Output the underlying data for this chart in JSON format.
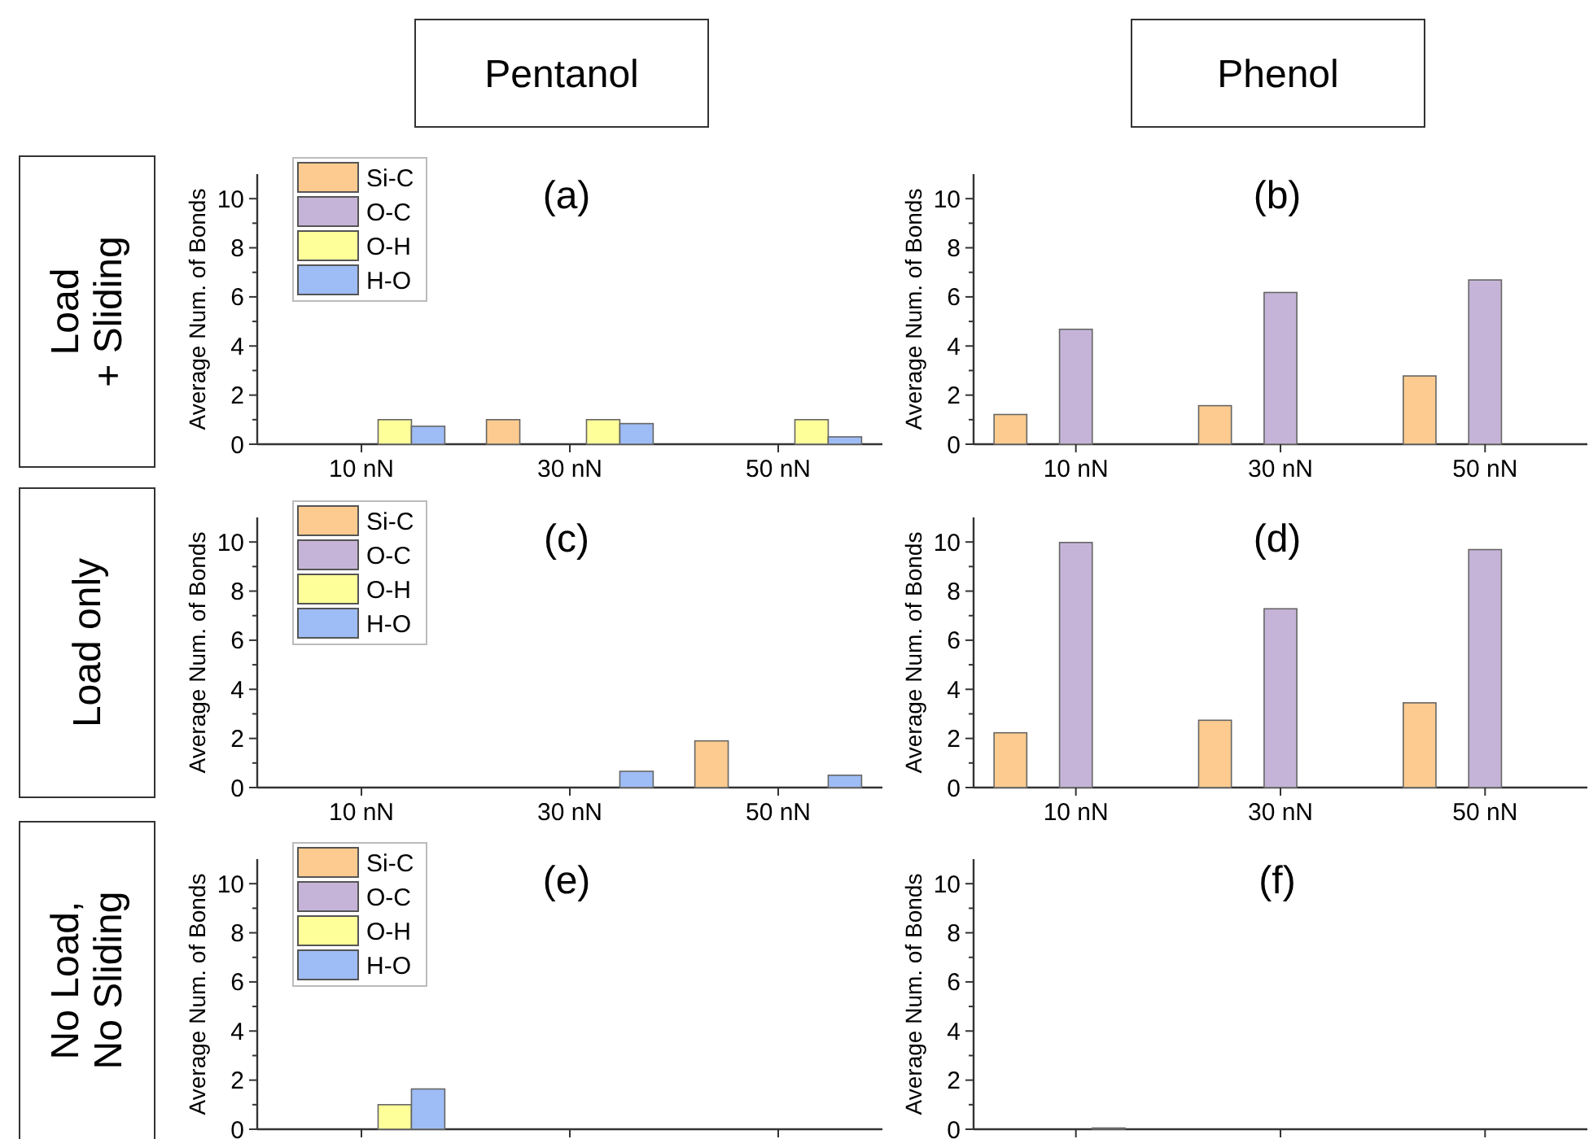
{
  "chart_data": [
    {
      "type": "bar",
      "title": "(a)",
      "ylabel": "Average Num. of Bonds",
      "categories": [
        "10 nN",
        "30 nN",
        "50 nN"
      ],
      "legend": "top left",
      "grid": false,
      "ylim": [
        0,
        11
      ],
      "yticks": [
        0,
        {
          "value": 1,
          "label": null
        },
        2,
        {
          "value": 3,
          "label": null
        },
        4,
        {
          "value": 5,
          "label": null
        },
        6,
        {
          "value": 7,
          "label": null
        },
        8,
        {
          "value": 9,
          "label": null
        },
        10
      ],
      "annotations": [
        "Pentanol",
        "Load\n+ Sliding"
      ],
      "series": [
        {
          "name": "Si-C",
          "color": "#fdcb8f",
          "values": [
            0,
            1,
            0
          ]
        },
        {
          "name": "O-C",
          "color": "#c6b4d8",
          "values": [
            0,
            0,
            0
          ]
        },
        {
          "name": "O-H",
          "color": "#ffff99",
          "values": [
            1,
            1,
            1
          ]
        },
        {
          "name": "H-O",
          "color": "#9ebcf5",
          "values": [
            0.73,
            0.84,
            0.3
          ]
        }
      ]
    },
    {
      "type": "bar",
      "title": "(b)",
      "ylabel": "Average Num. of Bonds",
      "categories": [
        "10 nN",
        "30 nN",
        "50 nN"
      ],
      "grid": false,
      "ylim": [
        0,
        11
      ],
      "yticks": [
        0,
        {
          "value": 1,
          "label": null
        },
        2,
        {
          "value": 3,
          "label": null
        },
        4,
        {
          "value": 5,
          "label": null
        },
        6,
        {
          "value": 7,
          "label": null
        },
        8,
        {
          "value": 9,
          "label": null
        },
        10
      ],
      "annotations": [
        "Phenol"
      ],
      "series": [
        {
          "color": "#fdcb8f",
          "values": [
            1.21,
            1.57,
            2.78
          ]
        },
        {
          "color": "#c6b4d8",
          "values": [
            4.68,
            6.18,
            6.69
          ]
        }
      ]
    },
    {
      "type": "bar",
      "title": "(c)",
      "ylabel": "Average Num. of Bonds",
      "categories": [
        "10 nN",
        "30 nN",
        "50 nN"
      ],
      "legend": "top left",
      "grid": false,
      "ylim": [
        0,
        11
      ],
      "yticks": [
        0,
        {
          "value": 1,
          "label": null
        },
        2,
        {
          "value": 3,
          "label": null
        },
        4,
        {
          "value": 5,
          "label": null
        },
        6,
        {
          "value": 7,
          "label": null
        },
        8,
        {
          "value": 9,
          "label": null
        },
        10
      ],
      "annotations": [
        "Load only"
      ],
      "series": [
        {
          "name": "Si-C",
          "color": "#fdcb8f",
          "values": [
            0,
            0,
            1.9
          ]
        },
        {
          "name": "O-C",
          "color": "#c6b4d8",
          "values": [
            0,
            0,
            0
          ]
        },
        {
          "name": "O-H",
          "color": "#ffff99",
          "values": [
            0,
            0,
            0
          ]
        },
        {
          "name": "H-O",
          "color": "#9ebcf5",
          "values": [
            0,
            0.66,
            0.5
          ]
        }
      ]
    },
    {
      "type": "bar",
      "title": "(d)",
      "ylabel": "Average Num. of Bonds",
      "categories": [
        "10 nN",
        "30 nN",
        "50 nN"
      ],
      "grid": false,
      "ylim": [
        0,
        11
      ],
      "yticks": [
        0,
        {
          "value": 1,
          "label": null
        },
        2,
        {
          "value": 3,
          "label": null
        },
        4,
        {
          "value": 5,
          "label": null
        },
        6,
        {
          "value": 7,
          "label": null
        },
        8,
        {
          "value": 9,
          "label": null
        },
        10
      ],
      "series": [
        {
          "color": "#fdcb8f",
          "values": [
            2.23,
            2.74,
            3.45
          ]
        },
        {
          "color": "#c6b4d8",
          "values": [
            9.98,
            7.28,
            9.69
          ]
        }
      ]
    },
    {
      "type": "bar",
      "title": "(e)",
      "ylabel": "Average Num. of Bonds",
      "categories": [
        null,
        null,
        null
      ],
      "tick_labels": "y",
      "legend": "top left",
      "grid": false,
      "ylim": [
        0,
        11
      ],
      "yticks": [
        0,
        {
          "value": 1,
          "label": null
        },
        2,
        {
          "value": 3,
          "label": null
        },
        4,
        {
          "value": 5,
          "label": null
        },
        6,
        {
          "value": 7,
          "label": null
        },
        8,
        {
          "value": 9,
          "label": null
        },
        10
      ],
      "annotations": [
        "No Load,\nNo Sliding"
      ],
      "series": [
        {
          "name": "Si-C",
          "color": "#fdcb8f",
          "values": [
            0,
            0,
            0
          ]
        },
        {
          "name": "O-C",
          "color": "#c6b4d8",
          "values": [
            0,
            0,
            0
          ]
        },
        {
          "name": "O-H",
          "color": "#ffff99",
          "values": [
            1,
            0,
            0
          ]
        },
        {
          "name": "H-O",
          "color": "#9ebcf5",
          "values": [
            1.64,
            0,
            0
          ]
        }
      ]
    },
    {
      "type": "bar",
      "title": "(f)",
      "ylabel": "Average Num. of Bonds",
      "categories": [
        null,
        null,
        null
      ],
      "tick_labels": "y",
      "grid": false,
      "ylim": [
        0,
        11
      ],
      "yticks": [
        0,
        {
          "value": 1,
          "label": null
        },
        2,
        {
          "value": 3,
          "label": null
        },
        4,
        {
          "value": 5,
          "label": null
        },
        6,
        {
          "value": 7,
          "label": null
        },
        8,
        {
          "value": 9,
          "label": null
        },
        10
      ],
      "series": [
        {
          "color": "#fdcb8f",
          "values": [
            0,
            0,
            0
          ]
        },
        {
          "color": "#c6b4d8",
          "values": [
            0,
            0,
            0
          ]
        },
        {
          "color": "#ffff99",
          "values": [
            0.05,
            0,
            0
          ]
        }
      ]
    }
  ]
}
